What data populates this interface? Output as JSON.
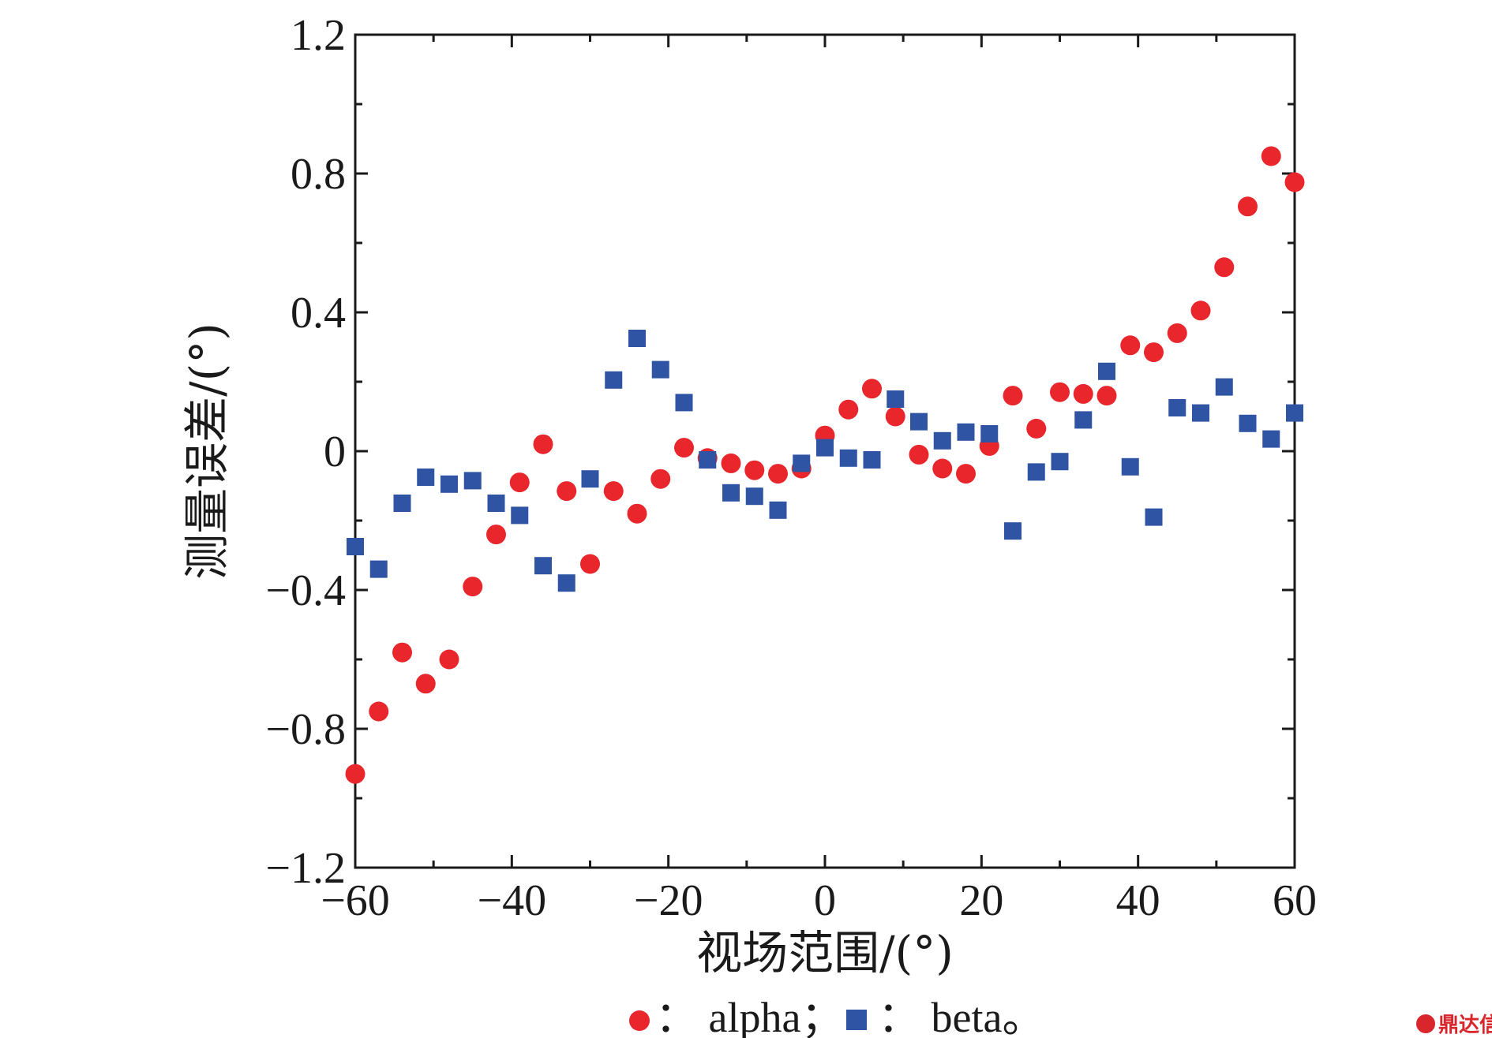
{
  "chart_data": {
    "type": "scatter",
    "xlabel": "视场范围/(°)",
    "ylabel": "测量误差/(°)",
    "xlim": [
      -60,
      60
    ],
    "ylim": [
      -1.2,
      1.2
    ],
    "xticks": [
      -60,
      -40,
      -20,
      0,
      20,
      40,
      60
    ],
    "yticks": [
      -1.2,
      -0.8,
      -0.4,
      0,
      0.4,
      0.8,
      1.2
    ],
    "xtick_labels": [
      "−60",
      "−40",
      "−20",
      "0",
      "20",
      "40",
      "60"
    ],
    "ytick_labels": [
      "−1.2",
      "−0.8",
      "−0.4",
      "0",
      "0.4",
      "0.8",
      "1.2"
    ],
    "grid": false,
    "legend_position": "bottom-center",
    "series": [
      {
        "name": "alpha",
        "marker": "circle",
        "color": "#e8262b",
        "x": [
          -60,
          -57,
          -54,
          -51,
          -48,
          -45,
          -42,
          -39,
          -36,
          -33,
          -30,
          -27,
          -24,
          -21,
          -18,
          -15,
          -12,
          -9,
          -6,
          -3,
          0,
          3,
          6,
          9,
          12,
          15,
          18,
          21,
          24,
          27,
          30,
          33,
          36,
          39,
          42,
          45,
          48,
          51,
          54,
          57,
          60
        ],
        "y": [
          -0.93,
          -0.75,
          -0.58,
          -0.67,
          -0.6,
          -0.39,
          -0.24,
          -0.09,
          0.02,
          -0.115,
          -0.325,
          -0.115,
          -0.18,
          -0.08,
          0.01,
          -0.02,
          -0.035,
          -0.055,
          -0.065,
          -0.05,
          0.045,
          0.12,
          0.18,
          0.1,
          -0.01,
          -0.05,
          -0.065,
          0.015,
          0.16,
          0.065,
          0.17,
          0.165,
          0.16,
          0.305,
          0.285,
          0.34,
          0.405,
          0.53,
          0.705,
          0.85,
          0.775
        ]
      },
      {
        "name": "beta",
        "marker": "square",
        "color": "#2e54a3",
        "x": [
          -60,
          -57,
          -54,
          -51,
          -48,
          -45,
          -42,
          -39,
          -36,
          -33,
          -30,
          -27,
          -24,
          -21,
          -18,
          -15,
          -12,
          -9,
          -6,
          -3,
          0,
          3,
          6,
          9,
          12,
          15,
          18,
          21,
          24,
          27,
          30,
          33,
          36,
          39,
          42,
          45,
          48,
          51,
          54,
          57,
          60
        ],
        "y": [
          -0.275,
          -0.34,
          -0.15,
          -0.075,
          -0.095,
          -0.085,
          -0.15,
          -0.185,
          -0.33,
          -0.38,
          -0.08,
          0.205,
          0.325,
          0.235,
          0.14,
          -0.025,
          -0.12,
          -0.13,
          -0.17,
          -0.035,
          0.01,
          -0.02,
          -0.025,
          0.15,
          0.085,
          0.03,
          0.055,
          0.05,
          -0.23,
          -0.06,
          -0.03,
          0.09,
          0.23,
          -0.045,
          -0.19,
          0.125,
          0.11,
          0.185,
          0.08,
          0.035,
          0.11
        ]
      }
    ]
  },
  "legend": {
    "alpha_label": "： alpha；",
    "beta_label": "： beta。"
  },
  "watermark": {
    "text": "鼎达信"
  }
}
